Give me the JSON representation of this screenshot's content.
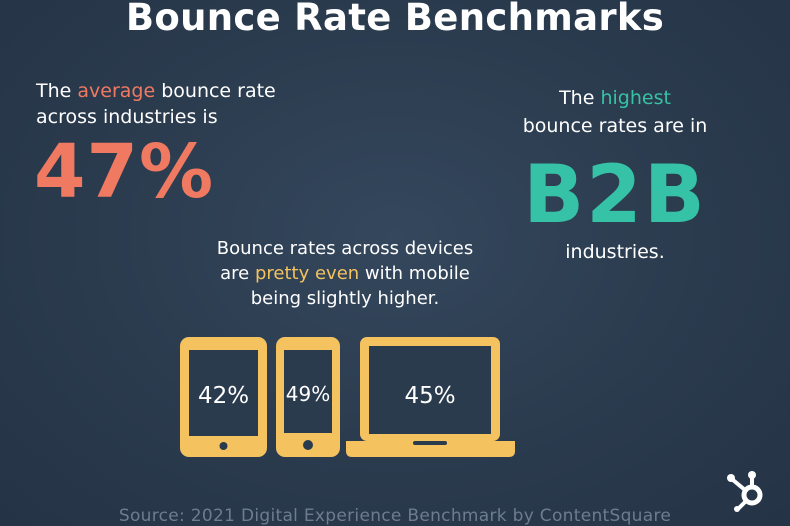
{
  "title": "Bounce Rate Benchmarks",
  "average": {
    "line1_pre": "The ",
    "line1_accent": "average",
    "line1_post": " bounce rate",
    "line2": "across industries is",
    "value": "47%"
  },
  "highest": {
    "line1_pre": "The ",
    "line1_accent": "highest",
    "line2": "bounce rates are in",
    "value": "B2B",
    "line3": "industries."
  },
  "devices_text": {
    "line1": "Bounce rates across devices",
    "line2_pre": "are ",
    "line2_accent": "pretty even",
    "line2_post": " with mobile",
    "line3": "being slightly higher."
  },
  "devices": [
    {
      "name": "tablet",
      "icon": "tablet-icon",
      "value": "42%"
    },
    {
      "name": "mobile",
      "icon": "smartphone-icon",
      "value": "49%"
    },
    {
      "name": "desktop",
      "icon": "laptop-icon",
      "value": "45%"
    }
  ],
  "source": "Source: 2021 Digital Experience Benchmark by ContentSquare",
  "logo": "hubspot-logo-icon",
  "colors": {
    "background": "#2b3b4e",
    "orange": "#f07a61",
    "teal": "#36c2a7",
    "yellow": "#f4c25e"
  }
}
